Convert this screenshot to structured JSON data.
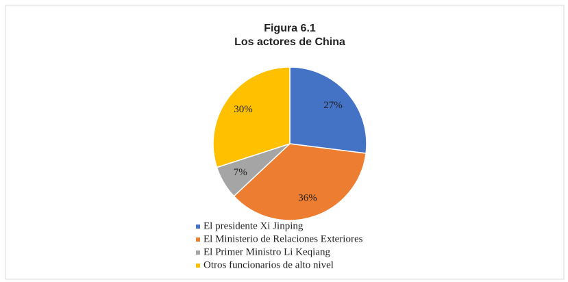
{
  "chart_data": {
    "type": "pie",
    "title": "Figura 6.1",
    "subtitle": "Los actores de China",
    "categories": [
      "El presidente Xi Jinping",
      "El Ministerio de Relaciones Exteriores",
      "El Primer Ministro Li Keqiang",
      "Otros funcionarios de alto nivel"
    ],
    "values": [
      27,
      36,
      7,
      30
    ],
    "value_labels": [
      "27%",
      "36%",
      "7%",
      "30%"
    ],
    "colors": [
      "#4472c4",
      "#ed7d31",
      "#a5a5a5",
      "#ffc000"
    ],
    "legend": "bottom"
  }
}
